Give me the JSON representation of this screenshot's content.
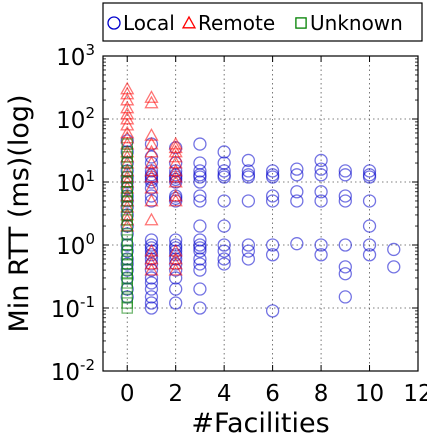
{
  "chart_data": {
    "type": "scatter",
    "xlabel": "#Facilities",
    "ylabel": "Min RTT (ms)(log)",
    "xlim": [
      -1,
      12
    ],
    "ylim": [
      0.01,
      1000
    ],
    "yscale": "log",
    "grid": true,
    "legend_position": "top",
    "x_ticks": [
      "0",
      "2",
      "4",
      "6",
      "8",
      "10",
      "12"
    ],
    "y_ticks": [
      {
        "base": "10",
        "exp": "3"
      },
      {
        "base": "10",
        "exp": "2"
      },
      {
        "base": "10",
        "exp": "1"
      },
      {
        "base": "10",
        "exp": "0"
      },
      {
        "base": "10",
        "exp": "-1"
      },
      {
        "base": "10",
        "exp": "-2"
      }
    ],
    "series": [
      {
        "name": "Local",
        "marker": "circle",
        "color": "#0000cc",
        "points": [
          [
            0,
            45
          ],
          [
            0,
            30
          ],
          [
            0,
            20
          ],
          [
            0,
            15
          ],
          [
            0,
            12
          ],
          [
            0,
            10
          ],
          [
            0,
            8
          ],
          [
            0,
            6
          ],
          [
            0,
            5
          ],
          [
            0,
            4
          ],
          [
            0,
            3
          ],
          [
            0,
            2
          ],
          [
            0,
            1.5
          ],
          [
            0,
            1
          ],
          [
            0,
            0.8
          ],
          [
            0,
            0.6
          ],
          [
            0,
            0.5
          ],
          [
            0,
            0.4
          ],
          [
            0,
            0.3
          ],
          [
            0,
            0.2
          ],
          [
            0,
            0.15
          ],
          [
            1,
            40
          ],
          [
            1,
            25
          ],
          [
            1,
            20
          ],
          [
            1,
            15
          ],
          [
            1,
            13
          ],
          [
            1,
            12
          ],
          [
            1,
            11
          ],
          [
            1,
            10
          ],
          [
            1,
            8
          ],
          [
            1,
            6
          ],
          [
            1,
            5
          ],
          [
            1,
            1.2
          ],
          [
            1,
            1
          ],
          [
            1,
            0.9
          ],
          [
            1,
            0.8
          ],
          [
            1,
            0.7
          ],
          [
            1,
            0.6
          ],
          [
            1,
            0.5
          ],
          [
            1,
            0.4
          ],
          [
            1,
            0.3
          ],
          [
            1,
            0.25
          ],
          [
            1,
            0.2
          ],
          [
            1,
            0.15
          ],
          [
            1,
            0.12
          ],
          [
            1,
            0.1
          ],
          [
            2,
            35
          ],
          [
            2,
            20
          ],
          [
            2,
            15
          ],
          [
            2,
            13
          ],
          [
            2,
            12
          ],
          [
            2,
            11
          ],
          [
            2,
            10
          ],
          [
            2,
            6
          ],
          [
            2,
            5.5
          ],
          [
            2,
            5
          ],
          [
            2,
            1.2
          ],
          [
            2,
            1
          ],
          [
            2,
            0.9
          ],
          [
            2,
            0.8
          ],
          [
            2,
            0.7
          ],
          [
            2,
            0.6
          ],
          [
            2,
            0.5
          ],
          [
            2,
            0.4
          ],
          [
            2,
            0.3
          ],
          [
            2,
            0.2
          ],
          [
            2,
            0.12
          ],
          [
            3,
            40
          ],
          [
            3,
            20
          ],
          [
            3,
            15
          ],
          [
            3,
            13
          ],
          [
            3,
            12
          ],
          [
            3,
            10
          ],
          [
            3,
            6
          ],
          [
            3,
            5
          ],
          [
            3,
            2
          ],
          [
            3,
            1.2
          ],
          [
            3,
            1
          ],
          [
            3,
            0.9
          ],
          [
            3,
            0.8
          ],
          [
            3,
            0.6
          ],
          [
            3,
            0.5
          ],
          [
            3,
            0.4
          ],
          [
            3,
            0.2
          ],
          [
            3,
            0.1
          ],
          [
            4,
            30
          ],
          [
            4,
            20
          ],
          [
            4,
            15
          ],
          [
            4,
            13
          ],
          [
            4,
            12
          ],
          [
            4,
            5
          ],
          [
            4,
            2
          ],
          [
            4,
            1
          ],
          [
            4,
            0.8
          ],
          [
            4,
            0.6
          ],
          [
            4,
            0.5
          ],
          [
            5,
            22
          ],
          [
            5,
            15
          ],
          [
            5,
            13
          ],
          [
            5,
            12
          ],
          [
            5,
            5
          ],
          [
            5,
            1
          ],
          [
            5,
            0.8
          ],
          [
            5,
            0.6
          ],
          [
            6,
            15
          ],
          [
            6,
            13
          ],
          [
            6,
            12
          ],
          [
            6,
            6
          ],
          [
            6,
            5
          ],
          [
            6,
            1
          ],
          [
            6,
            0.7
          ],
          [
            6,
            0.09
          ],
          [
            7,
            16
          ],
          [
            7,
            13
          ],
          [
            7,
            7
          ],
          [
            7,
            5
          ],
          [
            7,
            1.05
          ],
          [
            8,
            22
          ],
          [
            8,
            16
          ],
          [
            8,
            13
          ],
          [
            8,
            7
          ],
          [
            8,
            5
          ],
          [
            8,
            1
          ],
          [
            8,
            0.7
          ],
          [
            9,
            15
          ],
          [
            9,
            13
          ],
          [
            9,
            6
          ],
          [
            9,
            5
          ],
          [
            9,
            1
          ],
          [
            9,
            0.45
          ],
          [
            9,
            0.35
          ],
          [
            9,
            0.15
          ],
          [
            10,
            15
          ],
          [
            10,
            13
          ],
          [
            10,
            12
          ],
          [
            10,
            5
          ],
          [
            10,
            2
          ],
          [
            10,
            1
          ],
          [
            10,
            0.7
          ],
          [
            11,
            0.85
          ],
          [
            11,
            0.45
          ]
        ]
      },
      {
        "name": "Remote",
        "marker": "triangle",
        "color": "#ff0000",
        "points": [
          [
            0,
            300
          ],
          [
            0,
            250
          ],
          [
            0,
            200
          ],
          [
            0,
            150
          ],
          [
            0,
            120
          ],
          [
            0,
            100
          ],
          [
            0,
            80
          ],
          [
            0,
            60
          ],
          [
            0,
            50
          ],
          [
            0,
            40
          ],
          [
            0,
            30
          ],
          [
            0,
            25
          ],
          [
            0,
            20
          ],
          [
            0,
            15
          ],
          [
            0,
            12
          ],
          [
            0,
            10
          ],
          [
            0,
            8
          ],
          [
            0,
            6
          ],
          [
            0,
            5
          ],
          [
            0,
            4
          ],
          [
            0,
            3
          ],
          [
            0,
            2.5
          ],
          [
            0,
            2
          ],
          [
            1,
            220
          ],
          [
            1,
            180
          ],
          [
            1,
            55
          ],
          [
            1,
            40
          ],
          [
            1,
            30
          ],
          [
            1,
            20
          ],
          [
            1,
            15
          ],
          [
            1,
            12
          ],
          [
            1,
            8
          ],
          [
            1,
            5
          ],
          [
            1,
            2.5
          ],
          [
            1,
            0.8
          ],
          [
            1,
            0.6
          ],
          [
            1,
            0.5
          ],
          [
            1,
            0.4
          ],
          [
            2,
            40
          ],
          [
            2,
            35
          ],
          [
            2,
            30
          ],
          [
            2,
            25
          ],
          [
            2,
            20
          ],
          [
            2,
            15
          ],
          [
            2,
            12
          ],
          [
            2,
            10
          ],
          [
            2,
            6
          ],
          [
            2,
            5
          ],
          [
            2,
            0.8
          ],
          [
            2,
            0.6
          ],
          [
            2,
            0.5
          ],
          [
            2,
            0.4
          ]
        ]
      },
      {
        "name": "Unknown",
        "marker": "square",
        "color": "#008000",
        "points": [
          [
            0,
            40
          ],
          [
            0,
            30
          ],
          [
            0,
            25
          ],
          [
            0,
            20
          ],
          [
            0,
            15
          ],
          [
            0,
            12
          ],
          [
            0,
            10
          ],
          [
            0,
            8
          ],
          [
            0,
            7
          ],
          [
            0,
            6
          ],
          [
            0,
            5
          ],
          [
            0,
            4
          ],
          [
            0,
            3
          ],
          [
            0,
            2.5
          ],
          [
            0,
            2
          ],
          [
            0,
            1.5
          ],
          [
            0,
            1.2
          ],
          [
            0,
            1
          ],
          [
            0,
            0.8
          ],
          [
            0,
            0.7
          ],
          [
            0,
            0.6
          ],
          [
            0,
            0.5
          ],
          [
            0,
            0.4
          ],
          [
            0,
            0.35
          ],
          [
            0,
            0.3
          ],
          [
            0,
            0.25
          ],
          [
            0,
            0.2
          ],
          [
            0,
            0.15
          ],
          [
            0,
            0.12
          ],
          [
            0,
            0.1
          ]
        ]
      }
    ]
  }
}
